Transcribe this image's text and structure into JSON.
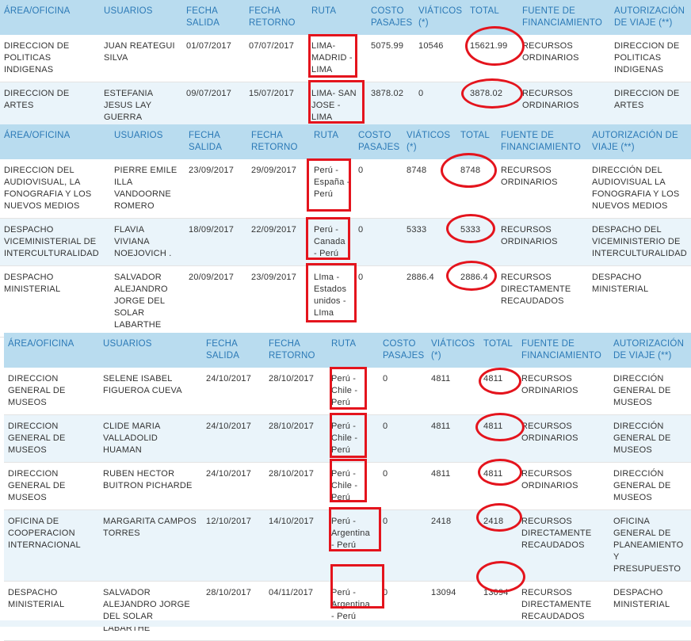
{
  "accent": {
    "header_bg": "#b9dcef",
    "header_text": "#2b79b6",
    "row_alt": "#eaf4fa",
    "annotation": "#e4141d"
  },
  "tables": [
    {
      "headers": [
        "ÁREA/OFICINA",
        "USUARIOS",
        "FECHA SALIDA",
        "FECHA RETORNO",
        "RUTA",
        "COSTO PASAJES",
        "VIÁTICOS (*)",
        "TOTAL",
        "FUENTE DE FINANCIAMIENTO",
        "AUTORIZACIÓN DE VIAJE (**)"
      ],
      "rows": [
        [
          "DIRECCION DE POLITICAS INDIGENAS",
          "JUAN REATEGUI SILVA",
          "01/07/2017",
          "07/07/2017",
          "LIMA-MADRID - LIMA",
          "5075.99",
          "10546",
          "15621.99",
          "RECURSOS ORDINARIOS",
          "DIRECCION DE POLITICAS INDIGENAS"
        ],
        [
          "DIRECCION DE ARTES",
          "ESTEFANIA JESUS LAY GUERRA",
          "09/07/2017",
          "15/07/2017",
          "LIMA- SAN JOSE - LIMA",
          "3878.02",
          "0",
          "3878.02",
          "RECURSOS ORDINARIOS",
          "DIRECCION DE ARTES"
        ]
      ]
    },
    {
      "headers": [
        "ÁREA/OFICINA",
        "USUARIOS",
        "FECHA SALIDA",
        "FECHA RETORNO",
        "RUTA",
        "COSTO PASAJES",
        "VIÁTICOS (*)",
        "TOTAL",
        "FUENTE DE FINANCIAMIENTO",
        "AUTORIZACIÓN DE VIAJE (**)"
      ],
      "rows": [
        [
          "DIRECCION DEL AUDIOVISUAL, LA FONOGRAFIA Y LOS NUEVOS MEDIOS",
          "PIERRE EMILE ILLA VANDOORNE ROMERO",
          "23/09/2017",
          "29/09/2017",
          "Perú - España - Perú",
          "0",
          "8748",
          "8748",
          "RECURSOS ORDINARIOS",
          "DIRECCIÓN DEL AUDIOVISUAL LA FONOGRAFIA Y LOS NUEVOS MEDIOS"
        ],
        [
          "DESPACHO VICEMINISTERIAL DE INTERCULTURALIDAD",
          "FLAVIA VIVIANA NOEJOVICH .",
          "18/09/2017",
          "22/09/2017",
          "Perú - Canada - Perú",
          "0",
          "5333",
          "5333",
          "RECURSOS ORDINARIOS",
          "DESPACHO DEL VICEMINISTERIO DE INTERCULTURALIDAD"
        ],
        [
          "DESPACHO MINISTERIAL",
          "SALVADOR ALEJANDRO JORGE DEL SOLAR LABARTHE",
          "20/09/2017",
          "23/09/2017",
          "LIma - Estados unidos - LIma",
          "0",
          "2886.4",
          "2886.4",
          "RECURSOS DIRECTAMENTE RECAUDADOS",
          "DESPACHO MINISTERIAL"
        ]
      ]
    },
    {
      "headers": [
        "ÁREA/OFICINA",
        "USUARIOS",
        "FECHA SALIDA",
        "FECHA RETORNO",
        "RUTA",
        "COSTO PASAJES",
        "VIÁTICOS (*)",
        "TOTAL",
        "FUENTE DE FINANCIAMIENTO",
        "AUTORIZACIÓN DE VIAJE (**)"
      ],
      "rows": [
        [
          "DIRECCION GENERAL DE MUSEOS",
          "SELENE ISABEL FIGUEROA CUEVA",
          "24/10/2017",
          "28/10/2017",
          "Perú - Chile - Perú",
          "0",
          "4811",
          "4811",
          "RECURSOS ORDINARIOS",
          "DIRECCIÓN GENERAL DE MUSEOS"
        ],
        [
          "DIRECCION GENERAL DE MUSEOS",
          "CLIDE MARIA VALLADOLID HUAMAN",
          "24/10/2017",
          "28/10/2017",
          "Perú - Chile - Perú",
          "0",
          "4811",
          "4811",
          "RECURSOS ORDINARIOS",
          "DIRECCIÓN GENERAL DE MUSEOS"
        ],
        [
          "DIRECCION GENERAL DE MUSEOS",
          "RUBEN HECTOR BUITRON PICHARDE",
          "24/10/2017",
          "28/10/2017",
          "Perú - Chile - Perú",
          "0",
          "4811",
          "4811",
          "RECURSOS ORDINARIOS",
          "DIRECCIÓN GENERAL DE MUSEOS"
        ],
        [
          "OFICINA DE COOPERACION INTERNACIONAL",
          "MARGARITA CAMPOS TORRES",
          "12/10/2017",
          "14/10/2017",
          "Perú - Argentina - Perú",
          "0",
          "2418",
          "2418",
          "RECURSOS DIRECTAMENTE RECAUDADOS",
          "OFICINA GENERAL DE PLANEAMIENTO Y PRESUPUESTO"
        ],
        [
          "DESPACHO MINISTERIAL",
          "SALVADOR ALEJANDRO JORGE DEL SOLAR LABARTHE",
          "28/10/2017",
          "04/11/2017",
          "Perú - Argentina - Perú",
          "0",
          "13094",
          "13094",
          "RECURSOS DIRECTAMENTE RECAUDADOS",
          "DESPACHO MINISTERIAL"
        ]
      ]
    }
  ]
}
